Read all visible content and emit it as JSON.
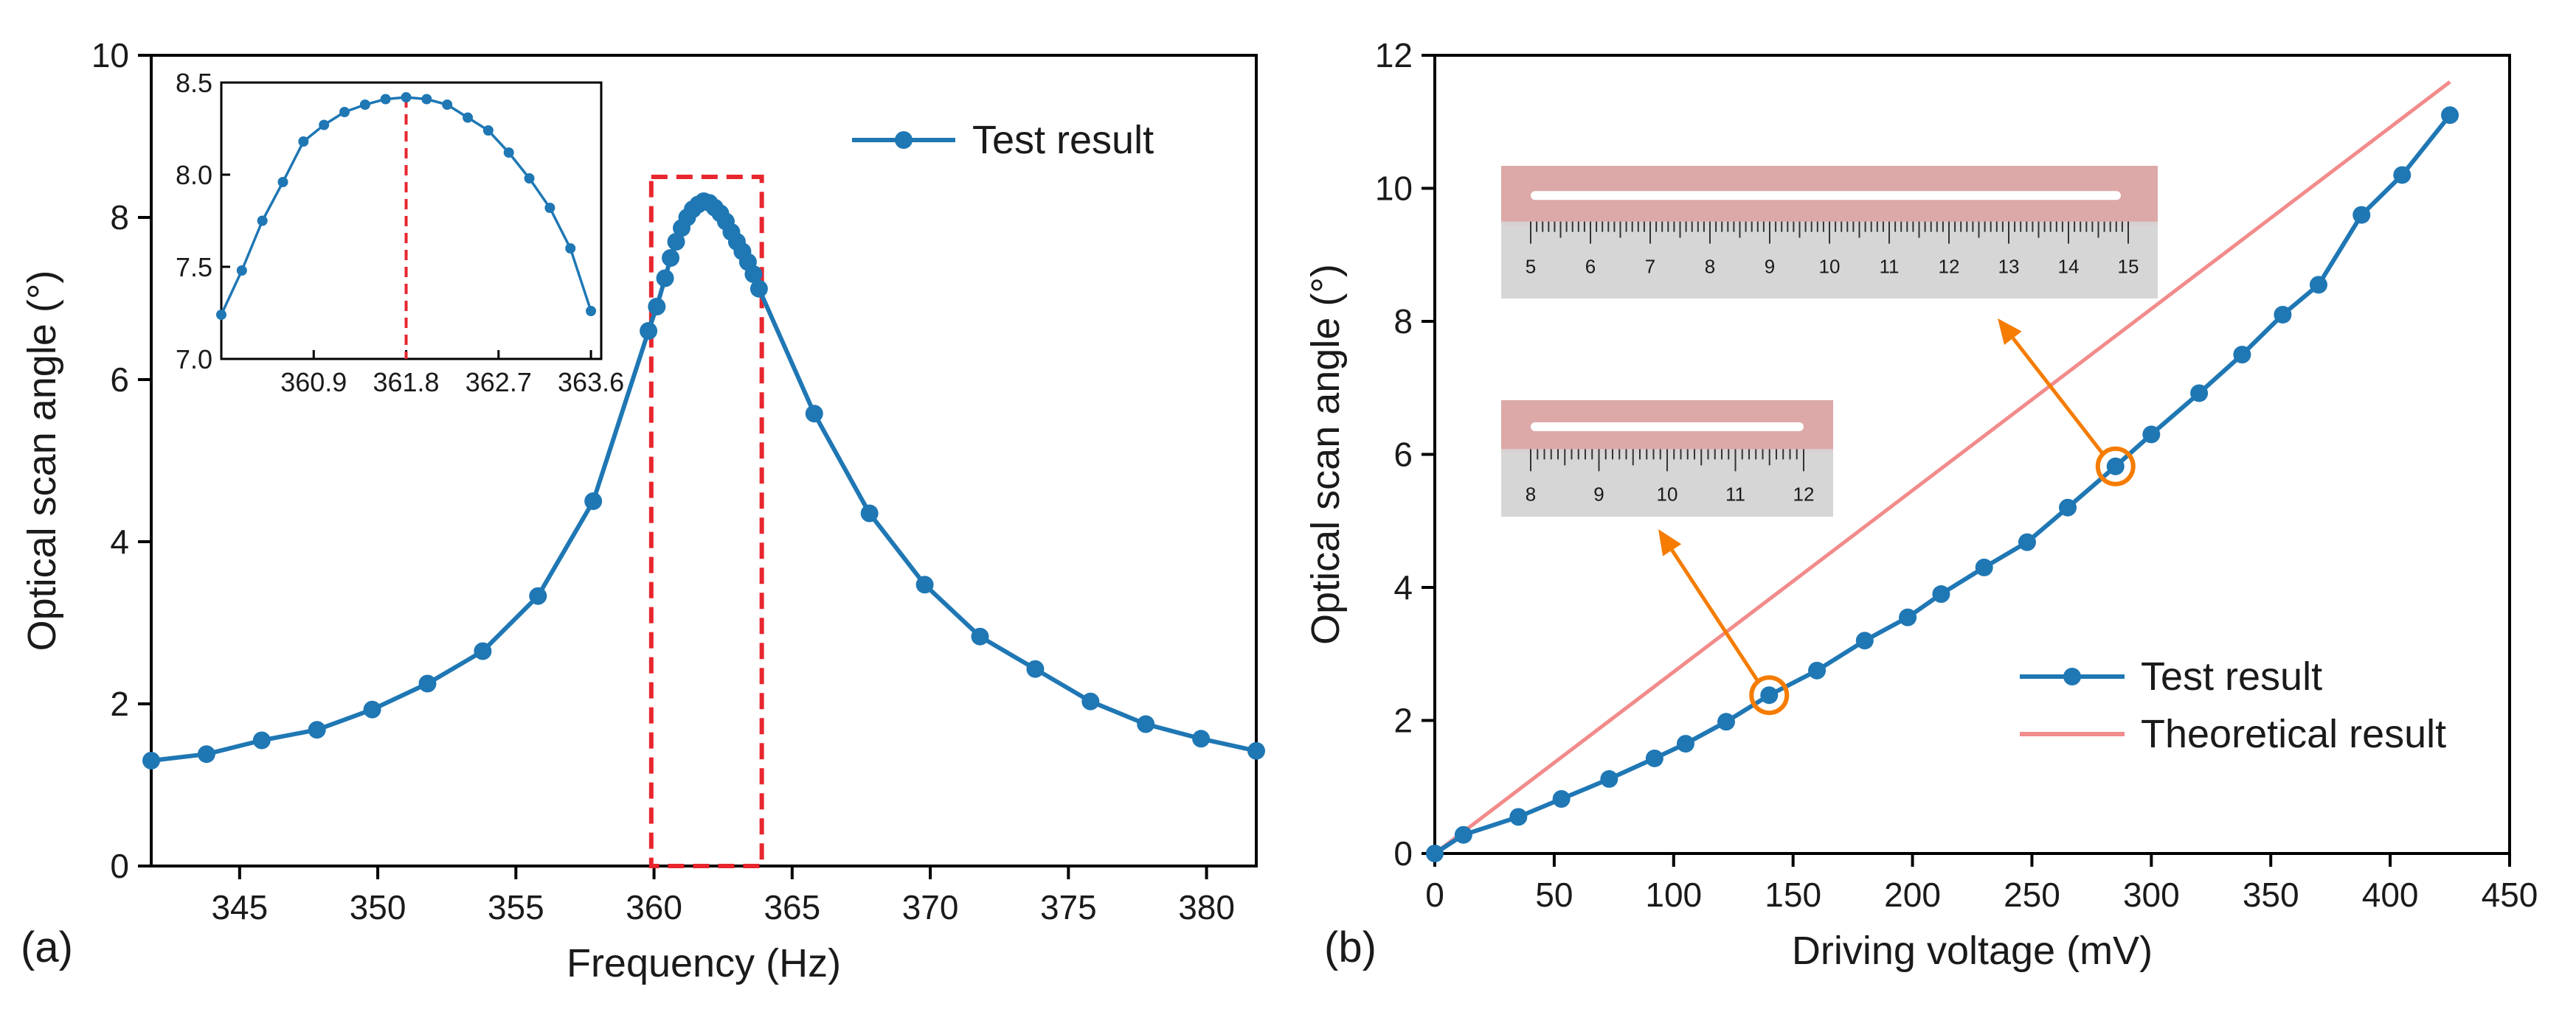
{
  "colors": {
    "series": "#1f77b4",
    "theory": "#f28b8b",
    "highlight_red": "#e8262e",
    "arrow_orange": "#f57c00",
    "photo_bg": "#c5c5c5",
    "photo_glow": "#ef8f8f",
    "ruler": "#d8d8d8"
  },
  "chart_data": [
    {
      "panel": "(a)",
      "type": "line",
      "xlabel": "Frequency (Hz)",
      "ylabel": "Optical scan angle (°)",
      "xlim": [
        341.8,
        381.8
      ],
      "ylim": [
        0,
        10
      ],
      "xticks": [
        345,
        350,
        355,
        360,
        365,
        370,
        375,
        380
      ],
      "yticks": [
        0,
        2,
        4,
        6,
        8,
        10
      ],
      "legend": {
        "position": "top-right",
        "entries": [
          "Test result"
        ]
      },
      "series": [
        {
          "name": "Test result",
          "x": [
            341.8,
            343.8,
            345.8,
            347.8,
            349.8,
            351.8,
            353.8,
            355.8,
            357.8,
            359.8,
            360.1,
            360.4,
            360.6,
            360.8,
            361.0,
            361.2,
            361.4,
            361.6,
            361.8,
            362.0,
            362.2,
            362.4,
            362.6,
            362.8,
            363.0,
            363.2,
            363.4,
            363.6,
            363.8,
            365.8,
            367.8,
            369.8,
            371.8,
            373.8,
            375.8,
            377.8,
            379.8,
            381.8
          ],
          "y": [
            1.3,
            1.38,
            1.55,
            1.68,
            1.93,
            2.25,
            2.65,
            3.33,
            4.5,
            6.6,
            6.9,
            7.25,
            7.5,
            7.7,
            7.87,
            8.0,
            8.1,
            8.16,
            8.2,
            8.18,
            8.12,
            8.05,
            7.95,
            7.82,
            7.7,
            7.58,
            7.45,
            7.3,
            7.12,
            5.58,
            4.35,
            3.47,
            2.83,
            2.43,
            2.03,
            1.75,
            1.57,
            1.42
          ]
        }
      ],
      "highlight_box": {
        "x_range": [
          359.9,
          363.9
        ],
        "y_range": [
          0,
          8.5
        ]
      },
      "inset": {
        "type": "line",
        "xlim": [
          360.0,
          363.7
        ],
        "ylim": [
          7.0,
          8.5
        ],
        "xticks": [
          360.9,
          361.8,
          362.7,
          363.6
        ],
        "yticks": [
          7.0,
          7.5,
          8.0,
          8.5
        ],
        "xtick_labels": [
          "360.9",
          "361.8",
          "362.7",
          "363.6"
        ],
        "ytick_labels": [
          "7.0",
          "7.5",
          "8.0",
          "8.5"
        ],
        "peak_marker_x": 361.8,
        "x": [
          360.0,
          360.2,
          360.4,
          360.6,
          360.8,
          361.0,
          361.2,
          361.4,
          361.6,
          361.8,
          362.0,
          362.2,
          362.4,
          362.6,
          362.8,
          363.0,
          363.2,
          363.4,
          363.6
        ],
        "y": [
          7.24,
          7.48,
          7.75,
          7.96,
          8.18,
          8.27,
          8.34,
          8.38,
          8.41,
          8.42,
          8.41,
          8.38,
          8.31,
          8.24,
          8.12,
          7.98,
          7.82,
          7.6,
          7.26
        ]
      }
    },
    {
      "panel": "(b)",
      "type": "line",
      "xlabel": "Driving voltage (mV)",
      "ylabel": "Optical scan angle (°)",
      "xlim": [
        0,
        450
      ],
      "ylim": [
        0,
        12
      ],
      "xticks": [
        0,
        50,
        100,
        150,
        200,
        250,
        300,
        350,
        400,
        450
      ],
      "yticks": [
        0,
        2,
        4,
        6,
        8,
        10,
        12
      ],
      "legend": {
        "position": "bottom-right",
        "entries": [
          "Test result",
          "Theoretical result"
        ]
      },
      "series": [
        {
          "name": "Test result",
          "x": [
            0,
            12,
            35,
            53,
            73,
            92,
            105,
            122,
            140,
            160,
            180,
            198,
            212,
            230,
            248,
            265,
            285,
            300,
            320,
            338,
            355,
            370,
            388,
            405,
            425
          ],
          "y": [
            0,
            0.28,
            0.55,
            0.82,
            1.12,
            1.43,
            1.65,
            1.98,
            2.38,
            2.75,
            3.2,
            3.55,
            3.9,
            4.3,
            4.68,
            5.2,
            5.82,
            6.3,
            6.92,
            7.5,
            8.1,
            8.55,
            9.6,
            10.2,
            11.1
          ]
        },
        {
          "name": "Theoretical result",
          "x": [
            0,
            425
          ],
          "y": [
            0,
            11.6
          ]
        }
      ],
      "annotations": [
        {
          "type": "circle",
          "x": 140,
          "y": 2.38
        },
        {
          "type": "circle",
          "x": 285,
          "y": 5.82
        }
      ],
      "photo_insets": [
        {
          "ruler_labels": [
            "5",
            "6",
            "7",
            "8",
            "9",
            "10",
            "11",
            "12",
            "13",
            "14",
            "15"
          ]
        },
        {
          "ruler_labels": [
            "8",
            "9",
            "10",
            "11",
            "12"
          ]
        }
      ]
    }
  ]
}
